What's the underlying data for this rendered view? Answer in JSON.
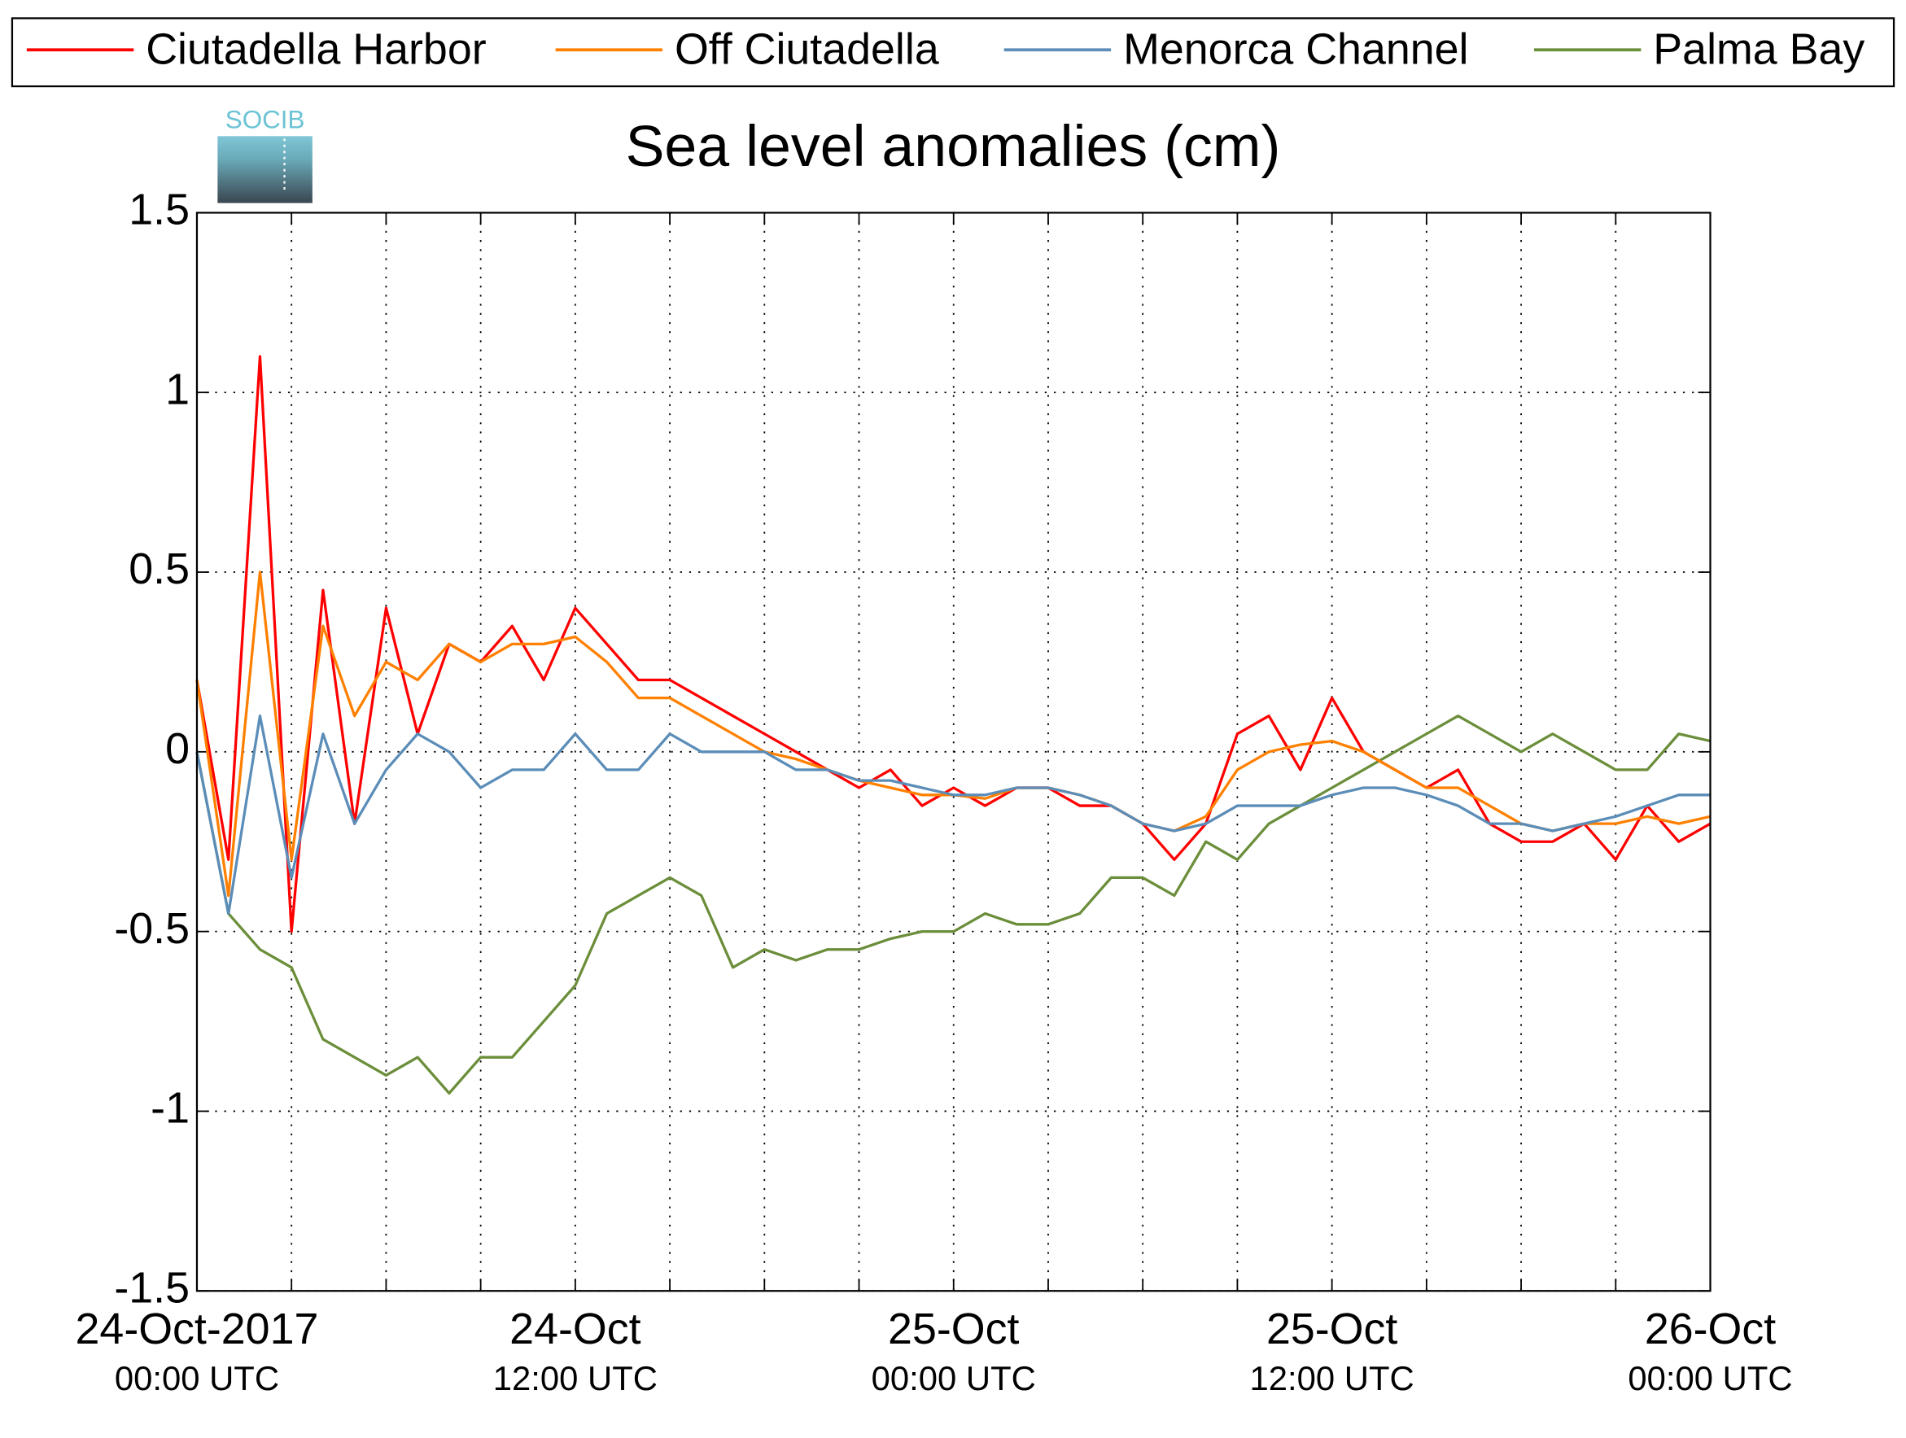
{
  "chart_data": {
    "type": "line",
    "title": "Sea level anomalies (cm)",
    "logo_text": "SOCIB",
    "x": [
      0,
      1,
      2,
      3,
      4,
      5,
      6,
      7,
      8,
      9,
      10,
      11,
      12,
      13,
      14,
      15,
      16,
      17,
      18,
      19,
      20,
      21,
      22,
      23,
      24,
      25,
      26,
      27,
      28,
      29,
      30,
      31,
      32,
      33,
      34,
      35,
      36,
      37,
      38,
      39,
      40,
      41,
      42,
      43,
      44,
      45,
      46,
      47,
      48
    ],
    "xlim": [
      0,
      48
    ],
    "xticks": [
      {
        "value": 0,
        "label": "24-Oct-2017",
        "sublabel": "00:00 UTC"
      },
      {
        "value": 12,
        "label": "24-Oct",
        "sublabel": "12:00 UTC"
      },
      {
        "value": 24,
        "label": "25-Oct",
        "sublabel": "00:00 UTC"
      },
      {
        "value": 36,
        "label": "25-Oct",
        "sublabel": "12:00 UTC"
      },
      {
        "value": 48,
        "label": "26-Oct",
        "sublabel": "00:00 UTC"
      }
    ],
    "xminor_ticks": [
      3,
      6,
      9,
      15,
      18,
      21,
      27,
      30,
      33,
      39,
      42,
      45
    ],
    "ylim": [
      -1.5,
      1.5
    ],
    "yticks": [
      -1.5,
      -1,
      -0.5,
      0,
      0.5,
      1,
      1.5
    ],
    "grid": true,
    "legend": "top",
    "series": [
      {
        "name": "Ciutadella Harbor",
        "color": "#ff0000",
        "values": [
          0.2,
          -0.3,
          1.1,
          -0.5,
          0.45,
          -0.2,
          0.4,
          0.05,
          0.3,
          0.25,
          0.35,
          0.2,
          0.4,
          0.3,
          0.2,
          0.2,
          0.15,
          0.1,
          0.05,
          0.0,
          -0.05,
          -0.1,
          -0.05,
          -0.15,
          -0.1,
          -0.15,
          -0.1,
          -0.1,
          -0.15,
          -0.15,
          -0.2,
          -0.3,
          -0.2,
          0.05,
          0.1,
          -0.05,
          0.15,
          0.0,
          -0.05,
          -0.1,
          -0.05,
          -0.2,
          -0.25,
          -0.25,
          -0.2,
          -0.3,
          -0.15,
          -0.25,
          -0.2
        ]
      },
      {
        "name": "Off Ciutadella",
        "color": "#ff8000",
        "values": [
          0.2,
          -0.4,
          0.5,
          -0.3,
          0.35,
          0.1,
          0.25,
          0.2,
          0.3,
          0.25,
          0.3,
          0.3,
          0.32,
          0.25,
          0.15,
          0.15,
          0.1,
          0.05,
          0.0,
          -0.02,
          -0.05,
          -0.08,
          -0.1,
          -0.12,
          -0.12,
          -0.13,
          -0.1,
          -0.1,
          -0.12,
          -0.15,
          -0.2,
          -0.22,
          -0.18,
          -0.05,
          0.0,
          0.02,
          0.03,
          0.0,
          -0.05,
          -0.1,
          -0.1,
          -0.15,
          -0.2,
          -0.22,
          -0.2,
          -0.2,
          -0.18,
          -0.2,
          -0.18
        ]
      },
      {
        "name": "Menorca Channel",
        "color": "#5b8db8",
        "values": [
          0.0,
          -0.45,
          0.1,
          -0.35,
          0.05,
          -0.2,
          -0.05,
          0.05,
          0.0,
          -0.1,
          -0.05,
          -0.05,
          0.05,
          -0.05,
          -0.05,
          0.05,
          0.0,
          0.0,
          0.0,
          -0.05,
          -0.05,
          -0.08,
          -0.08,
          -0.1,
          -0.12,
          -0.12,
          -0.1,
          -0.1,
          -0.12,
          -0.15,
          -0.2,
          -0.22,
          -0.2,
          -0.15,
          -0.15,
          -0.15,
          -0.12,
          -0.1,
          -0.1,
          -0.12,
          -0.15,
          -0.2,
          -0.2,
          -0.22,
          -0.2,
          -0.18,
          -0.15,
          -0.12,
          -0.12
        ]
      },
      {
        "name": "Palma Bay",
        "color": "#6b8e3a",
        "values": [
          0.0,
          -0.45,
          -0.55,
          -0.6,
          -0.8,
          -0.85,
          -0.9,
          -0.85,
          -0.95,
          -0.85,
          -0.85,
          -0.75,
          -0.65,
          -0.45,
          -0.4,
          -0.35,
          -0.4,
          -0.6,
          -0.55,
          -0.58,
          -0.55,
          -0.55,
          -0.52,
          -0.5,
          -0.5,
          -0.45,
          -0.48,
          -0.48,
          -0.45,
          -0.35,
          -0.35,
          -0.4,
          -0.25,
          -0.3,
          -0.2,
          -0.15,
          -0.1,
          -0.05,
          0.0,
          0.05,
          0.1,
          0.05,
          0.0,
          0.05,
          0.0,
          -0.05,
          -0.05,
          0.05,
          0.03
        ]
      }
    ]
  }
}
